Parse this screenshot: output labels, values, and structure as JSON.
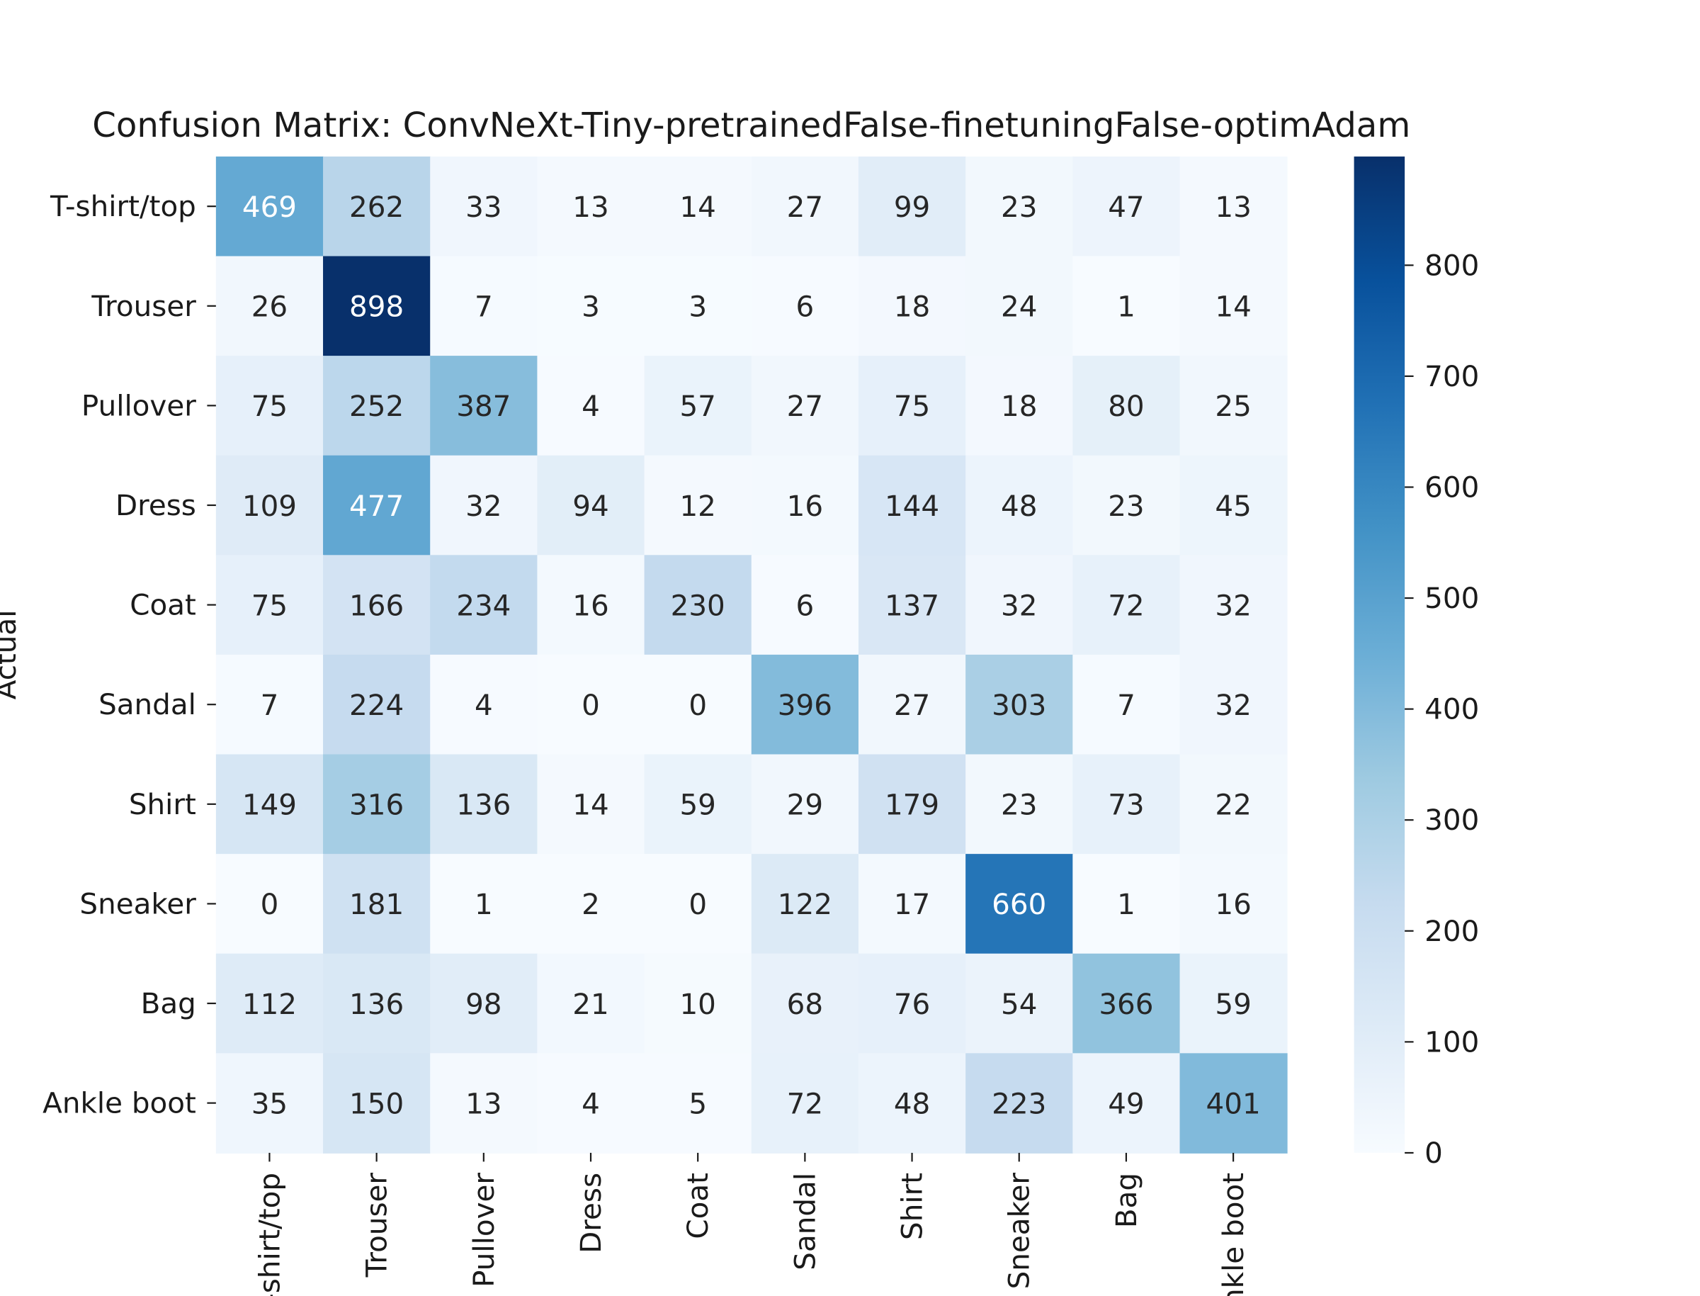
{
  "chart_data": {
    "type": "heatmap",
    "title": "Confusion Matrix: ConvNeXt-Tiny-pretrainedFalse-finetuningFalse-optimAdam",
    "ylabel": "Actual",
    "xlabel": "",
    "row_labels": [
      "T-shirt/top",
      "Trouser",
      "Pullover",
      "Dress",
      "Coat",
      "Sandal",
      "Shirt",
      "Sneaker",
      "Bag",
      "Ankle boot"
    ],
    "col_labels": [
      "T-shirt/top",
      "Trouser",
      "Pullover",
      "Dress",
      "Coat",
      "Sandal",
      "Shirt",
      "Sneaker",
      "Bag",
      "Ankle boot"
    ],
    "values": [
      [
        469,
        262,
        33,
        13,
        14,
        27,
        99,
        23,
        47,
        13
      ],
      [
        26,
        898,
        7,
        3,
        3,
        6,
        18,
        24,
        1,
        14
      ],
      [
        75,
        252,
        387,
        4,
        57,
        27,
        75,
        18,
        80,
        25
      ],
      [
        109,
        477,
        32,
        94,
        12,
        16,
        144,
        48,
        23,
        45
      ],
      [
        75,
        166,
        234,
        16,
        230,
        6,
        137,
        32,
        72,
        32
      ],
      [
        7,
        224,
        4,
        0,
        0,
        396,
        27,
        303,
        7,
        32
      ],
      [
        149,
        316,
        136,
        14,
        59,
        29,
        179,
        23,
        73,
        22
      ],
      [
        0,
        181,
        1,
        2,
        0,
        122,
        17,
        660,
        1,
        16
      ],
      [
        112,
        136,
        98,
        21,
        10,
        68,
        76,
        54,
        366,
        59
      ],
      [
        35,
        150,
        13,
        4,
        5,
        72,
        48,
        223,
        49,
        401
      ]
    ],
    "vmin": 0,
    "vmax": 898,
    "colormap": "Blues",
    "colorbar_ticks": [
      0,
      100,
      200,
      300,
      400,
      500,
      600,
      700,
      800
    ],
    "annotation_colors": {
      "dark_text": "#262626",
      "light_text": "#ffffff"
    },
    "grid": false
  }
}
